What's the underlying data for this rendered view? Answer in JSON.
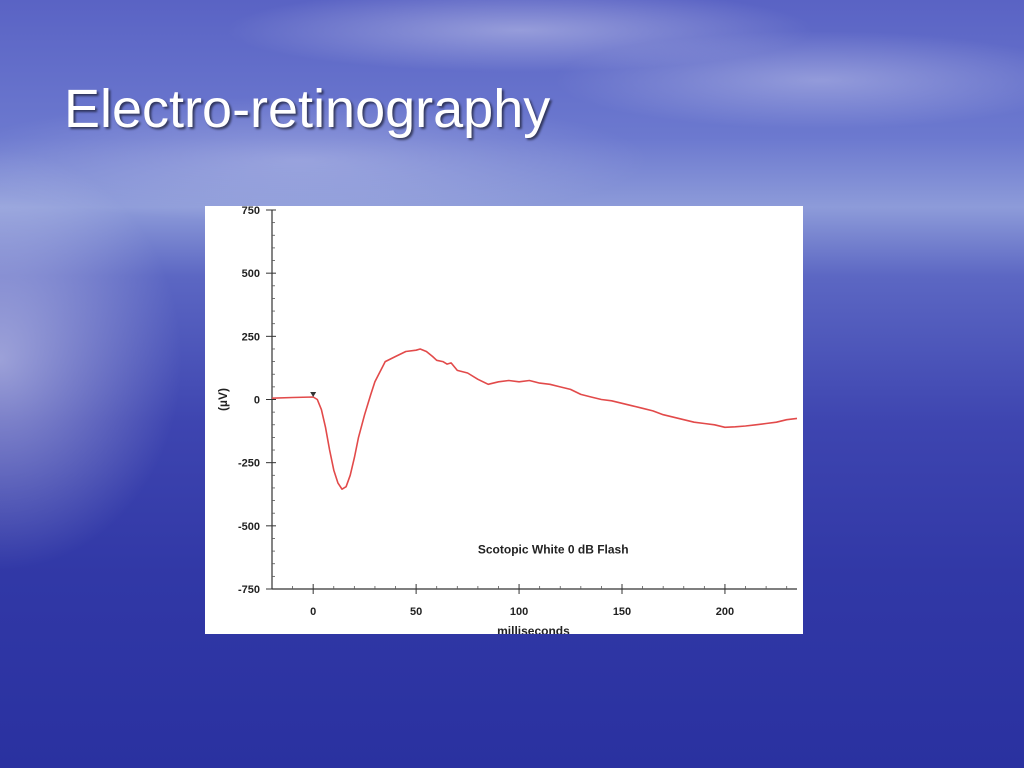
{
  "slide": {
    "title": "Electro-retinography"
  },
  "chart_data": {
    "type": "line",
    "title": "",
    "annotation": "Scotopic    White 0 dB Flash",
    "xlabel": "milliseconds",
    "ylabel": "(µV)",
    "xlim": [
      -20,
      235
    ],
    "ylim": [
      -750,
      750
    ],
    "x_ticks": [
      0,
      50,
      100,
      150,
      200
    ],
    "y_ticks": [
      750,
      500,
      250,
      0,
      -250,
      -500,
      -750
    ],
    "grid": false,
    "series": [
      {
        "color": "#e24a4a",
        "x": [
          -20,
          -10,
          0,
          2,
          4,
          6,
          8,
          10,
          12,
          14,
          16,
          18,
          20,
          22,
          25,
          28,
          30,
          35,
          40,
          45,
          50,
          52,
          55,
          58,
          60,
          63,
          65,
          67,
          70,
          75,
          80,
          85,
          90,
          95,
          100,
          105,
          110,
          115,
          120,
          125,
          130,
          135,
          140,
          145,
          150,
          155,
          160,
          165,
          170,
          175,
          180,
          185,
          190,
          195,
          200,
          205,
          210,
          215,
          220,
          225,
          230,
          235
        ],
        "y": [
          5,
          8,
          10,
          0,
          -40,
          -110,
          -200,
          -280,
          -330,
          -355,
          -345,
          -300,
          -230,
          -150,
          -60,
          20,
          70,
          150,
          170,
          190,
          195,
          200,
          190,
          170,
          155,
          150,
          140,
          145,
          115,
          105,
          80,
          60,
          70,
          75,
          70,
          75,
          65,
          60,
          50,
          40,
          20,
          10,
          0,
          -5,
          -15,
          -25,
          -35,
          -45,
          -60,
          -70,
          -80,
          -90,
          -95,
          -100,
          -110,
          -108,
          -105,
          -100,
          -95,
          -90,
          -80,
          -75
        ]
      }
    ]
  }
}
